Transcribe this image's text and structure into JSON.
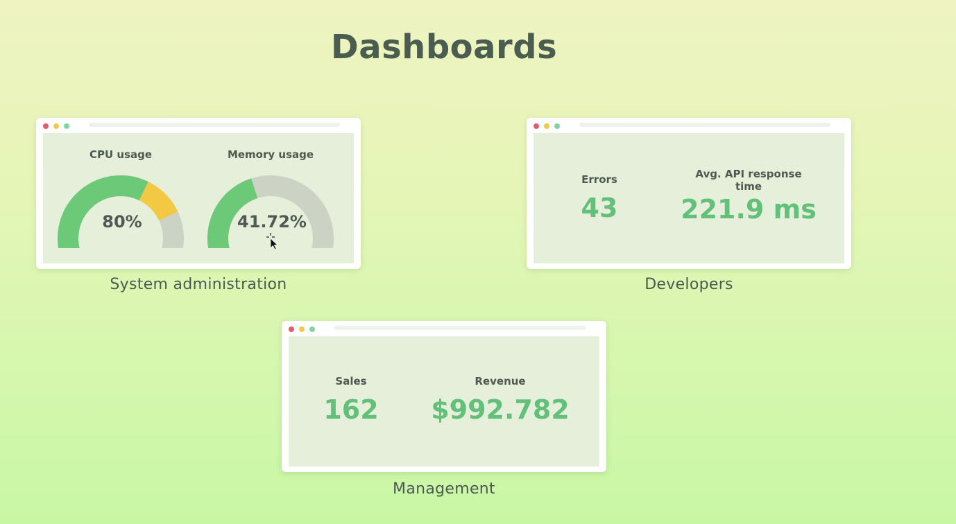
{
  "page": {
    "title": "Dashboards"
  },
  "sysadmin": {
    "caption": "System administration",
    "cpu": {
      "label": "CPU usage",
      "value_text": "80%",
      "fraction": 0.8
    },
    "memory": {
      "label": "Memory usage",
      "value_text": "41.72%",
      "fraction": 0.4172
    }
  },
  "developers": {
    "caption": "Developers",
    "errors": {
      "label": "Errors",
      "value": "43"
    },
    "api_time": {
      "label": "Avg. API response time",
      "value": "221.9 ms"
    }
  },
  "management": {
    "caption": "Management",
    "sales": {
      "label": "Sales",
      "value": "162"
    },
    "revenue": {
      "label": "Revenue",
      "value": "$992.782"
    }
  },
  "colors": {
    "gauge_green": "#6cc977",
    "gauge_yellow": "#f3c944",
    "gauge_track": "#cdd3c4",
    "metric_green": "#62c07a",
    "dot_red": "#e25c6b",
    "dot_yellow": "#f2c94c",
    "dot_green": "#7fd6a4"
  }
}
